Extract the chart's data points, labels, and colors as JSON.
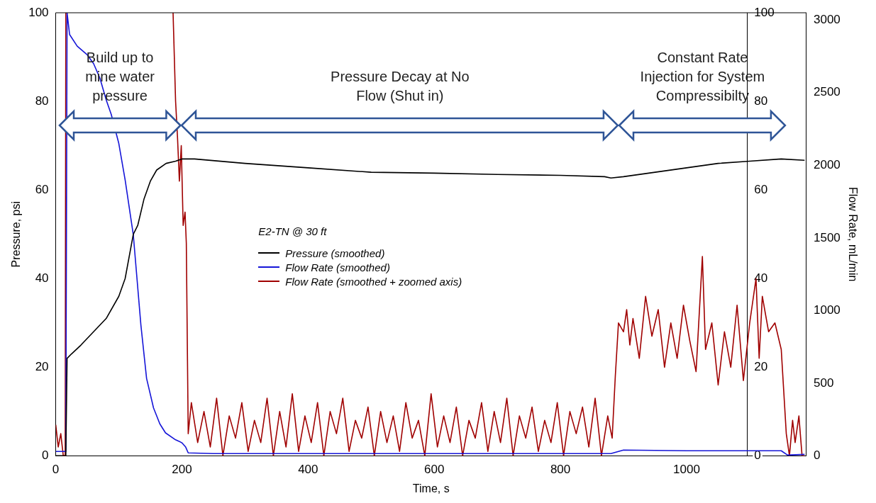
{
  "chart_data": {
    "type": "line",
    "xlabel": "Time, s",
    "ylabel": "Pressure, psi",
    "y2label": "Flow Rate, mL/min",
    "legend_title": "E2-TN @ 30 ft",
    "legend": "center",
    "grid": false,
    "marker": "none",
    "line_style": "solid",
    "xlim": [
      0,
      1190
    ],
    "xticks": [
      0,
      200,
      400,
      600,
      800,
      1000
    ],
    "ylim": [
      0,
      100
    ],
    "yticks": [
      0,
      20,
      40,
      60,
      80,
      100
    ],
    "y2lim": [
      0,
      3050
    ],
    "y2ticks": [
      0,
      500,
      1000,
      1500,
      2000,
      2500,
      3000
    ],
    "y3lim": [
      0,
      100
    ],
    "y3ticks": [
      0,
      20,
      40,
      60,
      80,
      100
    ],
    "annotations": [
      "Build up to mine water pressure",
      "Pressure Decay at No Flow (Shut in)",
      "Constant Rate Injection for System Compressibilty"
    ],
    "series": [
      {
        "name": "Pressure (smoothed)",
        "color": "#000000",
        "x": [
          0,
          16,
          18,
          25,
          40,
          60,
          80,
          100,
          110,
          123,
          130,
          140,
          150,
          160,
          175,
          190,
          200,
          220,
          300,
          400,
          500,
          600,
          700,
          800,
          870,
          880,
          900,
          950,
          1000,
          1050,
          1100,
          1150,
          1187
        ],
        "values": [
          0,
          0,
          22,
          23,
          25,
          28,
          31,
          36,
          40,
          50,
          52,
          58,
          62,
          64.5,
          66,
          66.5,
          67,
          67,
          66,
          65,
          64,
          63.8,
          63.5,
          63.3,
          63,
          62.7,
          63,
          64,
          65,
          66,
          66.5,
          67,
          66.7
        ]
      },
      {
        "name": "Flow Rate (smoothed)",
        "color": "#1515d8",
        "axis": "y2",
        "x": [
          0,
          16,
          18,
          22,
          34,
          50,
          60,
          70,
          80,
          88,
          100,
          110,
          123,
          135,
          144,
          155,
          165,
          174,
          190,
          200,
          206,
          210,
          250,
          400,
          600,
          880,
          900,
          1000,
          1100,
          1150,
          1160,
          1187
        ],
        "values": [
          30,
          30,
          3050,
          2900,
          2820,
          2760,
          2700,
          2600,
          2450,
          2350,
          2150,
          1900,
          1520,
          900,
          533,
          330,
          220,
          158,
          110,
          90,
          60,
          20,
          15,
          15,
          15,
          15,
          40,
          35,
          35,
          35,
          5,
          10
        ]
      },
      {
        "name": "Flow Rate (smoothed + zoomed axis)",
        "color": "#a00000",
        "axis": "y3",
        "x": [
          0,
          4,
          8,
          12,
          15,
          16,
          100,
          186,
          190,
          193,
          196,
          199,
          202,
          205,
          207,
          210,
          215,
          225,
          235,
          245,
          255,
          265,
          275,
          285,
          295,
          305,
          315,
          325,
          335,
          345,
          355,
          365,
          375,
          385,
          395,
          405,
          415,
          425,
          435,
          445,
          455,
          465,
          475,
          485,
          495,
          505,
          515,
          525,
          535,
          545,
          555,
          565,
          575,
          585,
          595,
          605,
          615,
          625,
          635,
          645,
          655,
          665,
          675,
          685,
          695,
          705,
          715,
          725,
          735,
          745,
          755,
          765,
          775,
          785,
          795,
          805,
          815,
          825,
          835,
          845,
          855,
          865,
          875,
          882,
          887,
          892,
          900,
          905,
          910,
          915,
          925,
          935,
          945,
          955,
          965,
          975,
          985,
          995,
          1005,
          1015,
          1025,
          1030,
          1040,
          1050,
          1060,
          1070,
          1080,
          1090,
          1100,
          1110,
          1115,
          1120,
          1130,
          1140,
          1150,
          1158,
          1163,
          1168,
          1172,
          1178,
          1183,
          1187
        ],
        "values": [
          7,
          2,
          5,
          0,
          0,
          100,
          null,
          100,
          80,
          72,
          62,
          70,
          52,
          55,
          48,
          5,
          12,
          3,
          10,
          2,
          13,
          0,
          9,
          4,
          12,
          1,
          8,
          3,
          13,
          0,
          10,
          2,
          14,
          1,
          9,
          3,
          12,
          0,
          10,
          5,
          13,
          1,
          8,
          4,
          11,
          0,
          10,
          3,
          9,
          1,
          12,
          4,
          8,
          0,
          14,
          2,
          9,
          3,
          11,
          0,
          8,
          4,
          12,
          1,
          10,
          3,
          13,
          0,
          9,
          4,
          11,
          1,
          8,
          3,
          12,
          0,
          10,
          5,
          11,
          2,
          13,
          0,
          9,
          4,
          18,
          30,
          28,
          33,
          25,
          31,
          22,
          36,
          27,
          33,
          20,
          30,
          22,
          34,
          26,
          19,
          45,
          24,
          30,
          16,
          28,
          20,
          34,
          17,
          30,
          40,
          22,
          36,
          28,
          30,
          24,
          5,
          0,
          8,
          3,
          9,
          0,
          0
        ]
      }
    ]
  }
}
